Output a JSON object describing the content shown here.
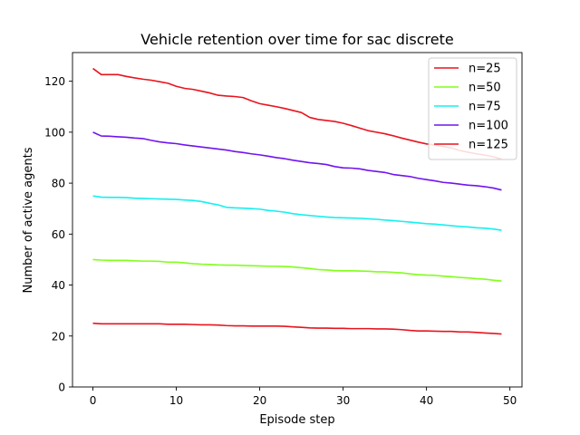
{
  "chart_data": {
    "type": "line",
    "title": "Vehicle retention over time for sac discrete",
    "xlabel": "Episode step",
    "ylabel": "Number of active agents",
    "xlim": [
      -2.45,
      51.45
    ],
    "ylim": [
      0,
      131.25
    ],
    "xticks": [
      0,
      10,
      20,
      30,
      40,
      50
    ],
    "yticks": [
      0,
      20,
      40,
      60,
      80,
      100,
      120
    ],
    "grid": false,
    "legend_position": "top-right",
    "x": [
      0,
      1,
      2,
      3,
      4,
      5,
      6,
      7,
      8,
      9,
      10,
      11,
      12,
      13,
      14,
      15,
      16,
      17,
      18,
      19,
      20,
      21,
      22,
      23,
      24,
      25,
      26,
      27,
      28,
      29,
      30,
      31,
      32,
      33,
      34,
      35,
      36,
      37,
      38,
      39,
      40,
      41,
      42,
      43,
      44,
      45,
      46,
      47,
      48,
      49
    ],
    "series": [
      {
        "name": "n=25",
        "color": "#e8141e",
        "values": [
          25,
          24.8,
          24.8,
          24.8,
          24.8,
          24.8,
          24.8,
          24.8,
          24.8,
          24.6,
          24.6,
          24.6,
          24.5,
          24.4,
          24.4,
          24.3,
          24.1,
          24,
          24,
          23.9,
          23.9,
          23.9,
          23.9,
          23.8,
          23.6,
          23.4,
          23.2,
          23.1,
          23.1,
          23,
          23,
          22.9,
          22.9,
          22.9,
          22.8,
          22.8,
          22.7,
          22.5,
          22.2,
          22,
          22,
          21.9,
          21.8,
          21.8,
          21.6,
          21.6,
          21.4,
          21.2,
          21,
          20.8
        ]
      },
      {
        "name": "n=50",
        "color": "#80ff1a",
        "values": [
          50,
          49.8,
          49.7,
          49.7,
          49.7,
          49.5,
          49.4,
          49.4,
          49.3,
          49,
          49,
          48.7,
          48.4,
          48.2,
          48.1,
          47.9,
          47.8,
          47.8,
          47.7,
          47.6,
          47.5,
          47.4,
          47.4,
          47.3,
          47.1,
          46.8,
          46.5,
          46.1,
          45.9,
          45.7,
          45.6,
          45.6,
          45.5,
          45.4,
          45.2,
          45.2,
          45,
          44.8,
          44.4,
          44.1,
          43.9,
          43.8,
          43.5,
          43.3,
          43,
          42.8,
          42.5,
          42.3,
          41.9,
          41.6
        ]
      },
      {
        "name": "n=75",
        "color": "#14f0f0",
        "values": [
          75,
          74.5,
          74.4,
          74.4,
          74.3,
          74.1,
          74,
          73.9,
          73.8,
          73.7,
          73.6,
          73.4,
          73.2,
          72.8,
          72.1,
          71.5,
          70.5,
          70.3,
          70.2,
          70,
          69.8,
          69.3,
          69,
          68.6,
          68,
          67.6,
          67.3,
          67,
          66.7,
          66.5,
          66.4,
          66.3,
          66.2,
          66,
          65.8,
          65.5,
          65.3,
          65,
          64.7,
          64.4,
          64.1,
          63.9,
          63.6,
          63.3,
          63,
          62.8,
          62.5,
          62.3,
          62,
          61.5
        ]
      },
      {
        "name": "n=100",
        "color": "#7014f0",
        "values": [
          100,
          98.5,
          98.4,
          98.2,
          98,
          97.7,
          97.5,
          96.8,
          96.2,
          95.8,
          95.5,
          95,
          94.6,
          94.2,
          93.8,
          93.4,
          93,
          92.4,
          92,
          91.5,
          91.1,
          90.6,
          90,
          89.6,
          89,
          88.5,
          88,
          87.7,
          87.3,
          86.5,
          86,
          85.9,
          85.6,
          85,
          84.6,
          84.2,
          83.4,
          83,
          82.6,
          81.9,
          81.4,
          80.9,
          80.3,
          80,
          79.6,
          79.2,
          79,
          78.6,
          78.1,
          77.3
        ]
      },
      {
        "name": "n=125",
        "color": "#e8141e",
        "values": [
          125,
          122.6,
          122.6,
          122.6,
          121.9,
          121.3,
          120.8,
          120.4,
          119.8,
          119.2,
          118,
          117.2,
          116.8,
          116.1,
          115.4,
          114.5,
          114.2,
          114,
          113.6,
          112.3,
          111.2,
          110.6,
          110,
          109.3,
          108.5,
          107.7,
          105.8,
          105,
          104.6,
          104.2,
          103.5,
          102.6,
          101.6,
          100.6,
          100,
          99.4,
          98.6,
          97.7,
          96.9,
          96.1,
          95.4,
          95,
          94.4,
          93.8,
          92.8,
          92.1,
          91.5,
          91,
          90.4,
          89.4
        ]
      }
    ]
  }
}
